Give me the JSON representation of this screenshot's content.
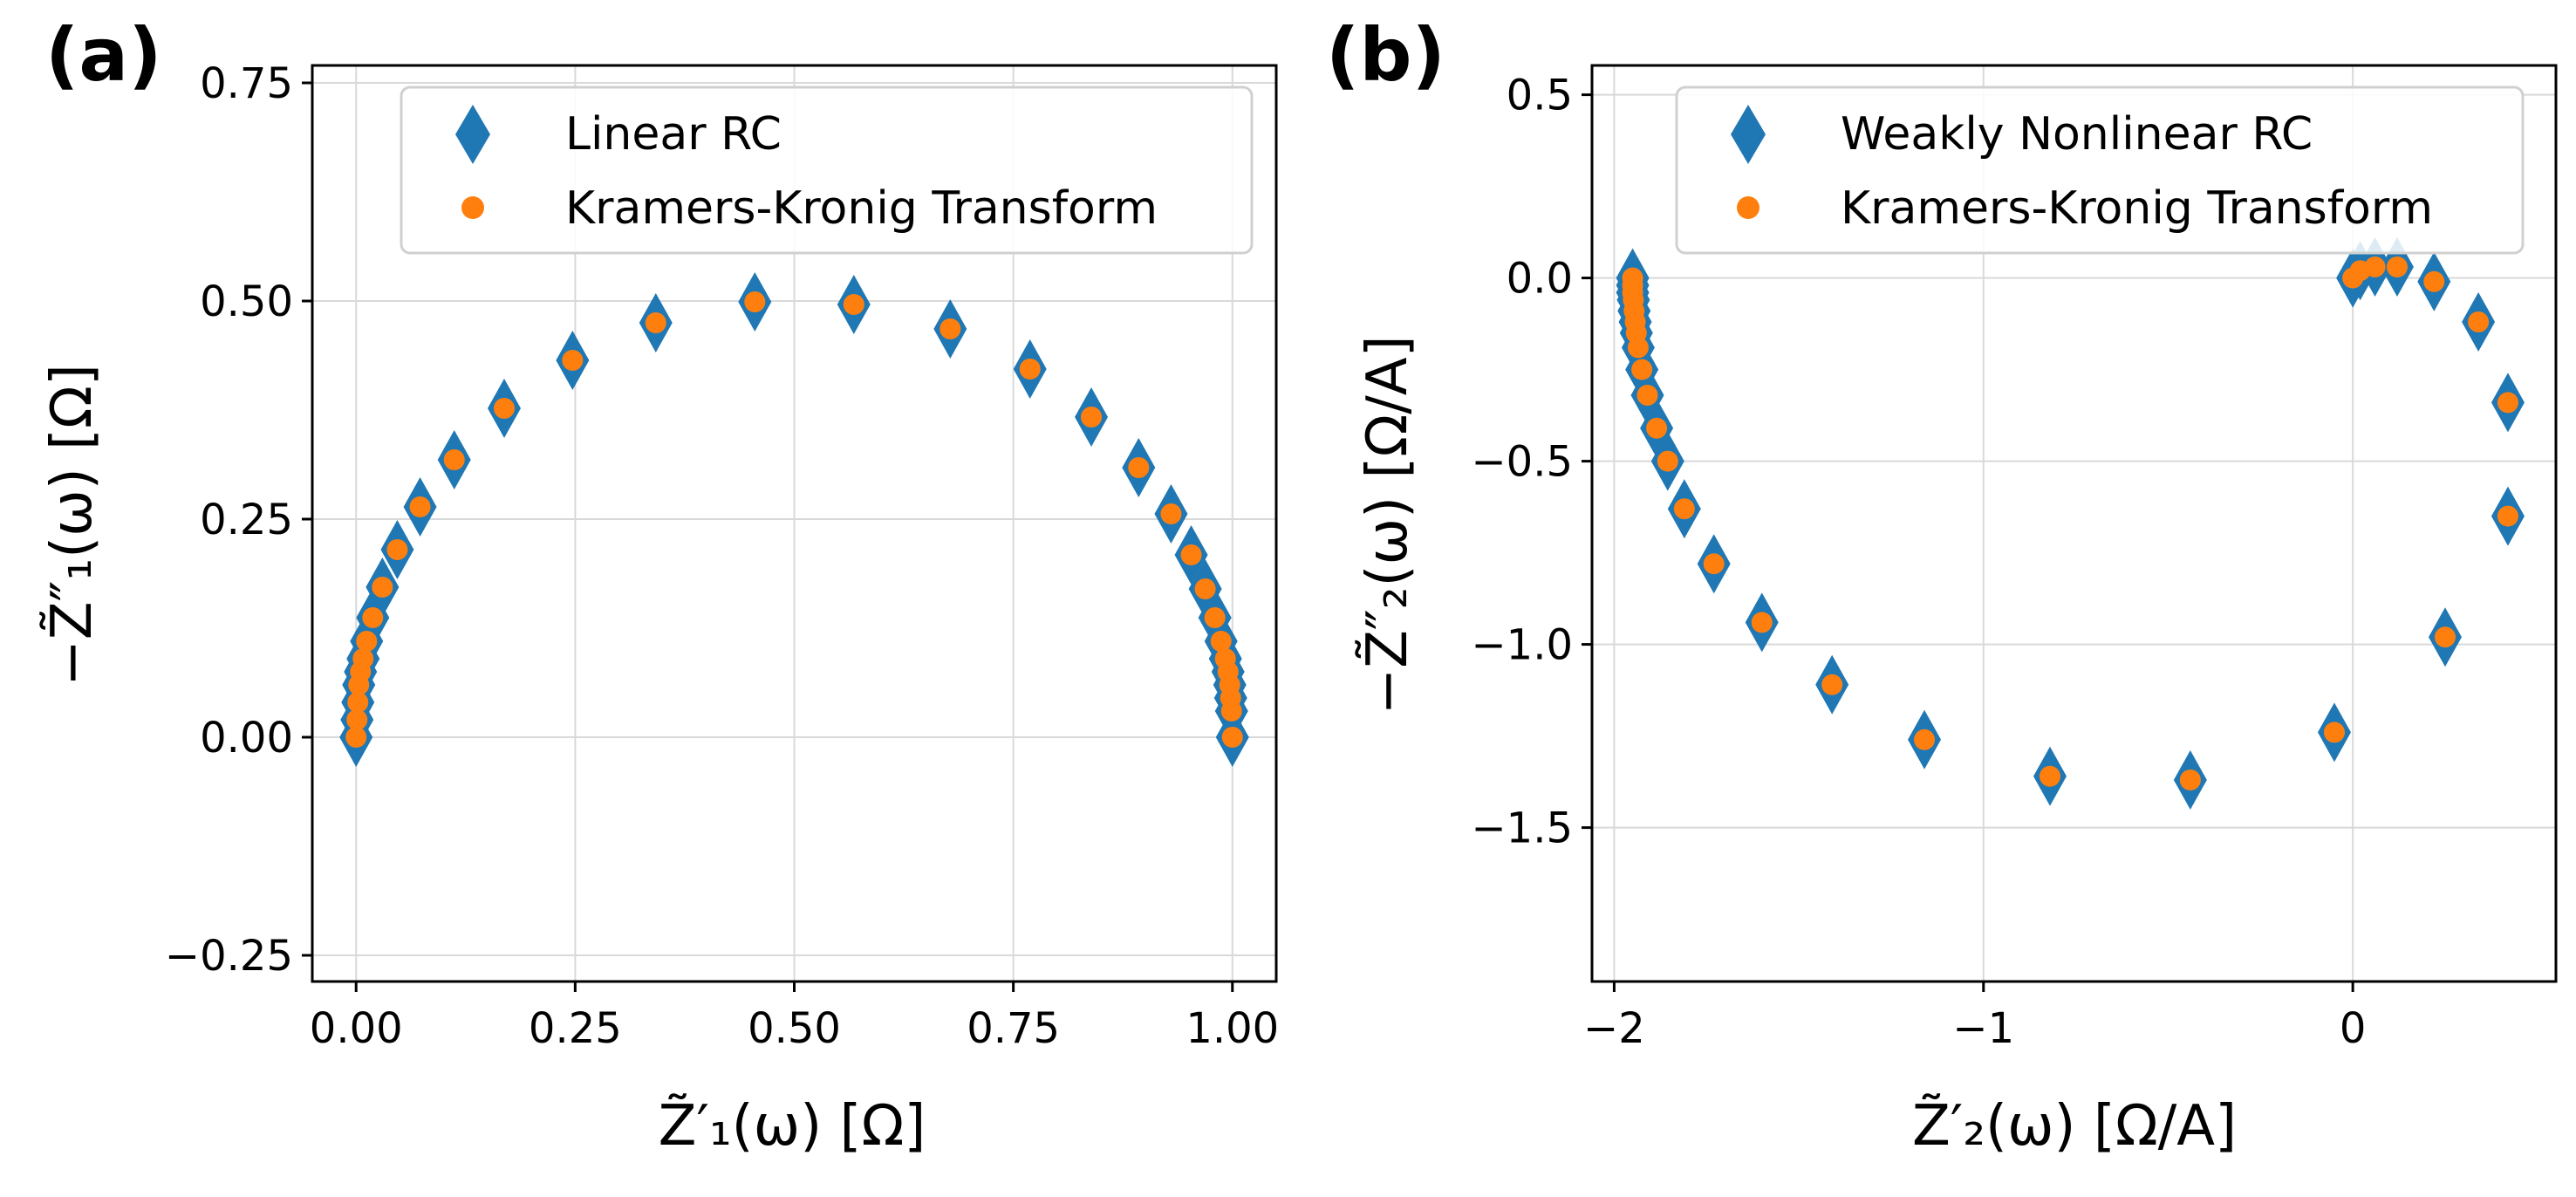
{
  "colors": {
    "diamond": "#1f77b4",
    "dot": "#ff7f0e",
    "grid": "#d9d9d9",
    "axis": "#000000"
  },
  "chart_data": [
    {
      "type": "scatter",
      "panel_label": "(a)",
      "xlabel": "Z̃′₁(ω) [Ω]",
      "ylabel": "−Z̃″₁(ω) [Ω]",
      "xlim": [
        -0.05,
        1.05
      ],
      "ylim": [
        -0.28,
        0.77
      ],
      "xticks": [
        0.0,
        0.25,
        0.5,
        0.75,
        1.0
      ],
      "xtick_labels": [
        "0.00",
        "0.25",
        "0.50",
        "0.75",
        "1.00"
      ],
      "yticks": [
        -0.25,
        0.0,
        0.25,
        0.5,
        0.75
      ],
      "ytick_labels": [
        "−0.25",
        "0.00",
        "0.25",
        "0.50",
        "0.75"
      ],
      "grid": true,
      "legend": "top-right",
      "series": [
        {
          "name": "Linear RC",
          "marker": "diamond",
          "x": [
            0.0,
            0.001,
            0.002,
            0.003,
            0.005,
            0.008,
            0.012,
            0.019,
            0.03,
            0.047,
            0.073,
            0.112,
            0.169,
            0.247,
            0.342,
            0.455,
            0.568,
            0.678,
            0.769,
            0.839,
            0.893,
            0.93,
            0.953,
            0.969,
            0.98,
            0.987,
            0.992,
            0.995,
            0.997,
            0.998,
            0.999,
            1.0
          ],
          "y": [
            0.0,
            0.02,
            0.04,
            0.06,
            0.075,
            0.09,
            0.11,
            0.137,
            0.172,
            0.215,
            0.264,
            0.318,
            0.377,
            0.432,
            0.475,
            0.499,
            0.496,
            0.468,
            0.422,
            0.367,
            0.309,
            0.256,
            0.209,
            0.17,
            0.137,
            0.11,
            0.09,
            0.075,
            0.06,
            0.045,
            0.03,
            0.0
          ]
        },
        {
          "name": "Kramers-Kronig Transform",
          "marker": "dot",
          "x": [
            0.0,
            0.001,
            0.002,
            0.003,
            0.005,
            0.008,
            0.012,
            0.019,
            0.03,
            0.047,
            0.073,
            0.112,
            0.169,
            0.247,
            0.342,
            0.455,
            0.568,
            0.678,
            0.769,
            0.839,
            0.893,
            0.93,
            0.953,
            0.969,
            0.98,
            0.987,
            0.992,
            0.995,
            0.997,
            0.998,
            0.999,
            1.0
          ],
          "y": [
            0.0,
            0.02,
            0.04,
            0.06,
            0.075,
            0.09,
            0.11,
            0.137,
            0.172,
            0.215,
            0.264,
            0.318,
            0.377,
            0.432,
            0.475,
            0.499,
            0.496,
            0.468,
            0.422,
            0.367,
            0.309,
            0.256,
            0.209,
            0.17,
            0.137,
            0.11,
            0.09,
            0.075,
            0.06,
            0.045,
            0.03,
            0.0
          ]
        }
      ]
    },
    {
      "type": "scatter",
      "panel_label": "(b)",
      "xlabel": "Z̃′₂(ω) [Ω/A]",
      "ylabel": "−Z̃″₂(ω) [Ω/A]",
      "xlim": [
        -2.06,
        0.55
      ],
      "ylim": [
        -1.92,
        0.58
      ],
      "xticks": [
        -2,
        -1,
        0
      ],
      "xtick_labels": [
        "−2",
        "−1",
        "0"
      ],
      "yticks": [
        -1.5,
        -1.0,
        -0.5,
        0.0,
        0.5
      ],
      "ytick_labels": [
        "−1.5",
        "−1.0",
        "−0.5",
        "0.0",
        "0.5"
      ],
      "grid": true,
      "legend": "top-right",
      "series": [
        {
          "name": "Weakly Nonlinear RC",
          "marker": "diamond",
          "x": [
            -1.95,
            -1.95,
            -1.95,
            -1.948,
            -1.946,
            -1.943,
            -1.94,
            -1.935,
            -1.925,
            -1.91,
            -1.885,
            -1.855,
            -1.81,
            -1.73,
            -1.6,
            -1.41,
            -1.16,
            -0.82,
            -0.44,
            -0.05,
            0.25,
            0.42,
            0.42,
            0.34,
            0.22,
            0.12,
            0.06,
            0.02,
            0.0
          ],
          "y": [
            0.0,
            -0.02,
            -0.04,
            -0.06,
            -0.09,
            -0.12,
            -0.15,
            -0.19,
            -0.25,
            -0.32,
            -0.41,
            -0.5,
            -0.63,
            -0.78,
            -0.94,
            -1.11,
            -1.26,
            -1.36,
            -1.37,
            -1.24,
            -0.98,
            -0.65,
            -0.34,
            -0.12,
            -0.01,
            0.03,
            0.03,
            0.02,
            0.0
          ]
        },
        {
          "name": "Kramers-Kronig Transform",
          "marker": "dot",
          "x": [
            -1.95,
            -1.95,
            -1.95,
            -1.948,
            -1.946,
            -1.943,
            -1.94,
            -1.935,
            -1.925,
            -1.91,
            -1.885,
            -1.855,
            -1.81,
            -1.73,
            -1.6,
            -1.41,
            -1.16,
            -0.82,
            -0.44,
            -0.05,
            0.25,
            0.42,
            0.42,
            0.34,
            0.22,
            0.12,
            0.06,
            0.02,
            0.0
          ],
          "y": [
            0.0,
            -0.02,
            -0.04,
            -0.06,
            -0.09,
            -0.12,
            -0.15,
            -0.19,
            -0.25,
            -0.32,
            -0.41,
            -0.5,
            -0.63,
            -0.78,
            -0.94,
            -1.11,
            -1.26,
            -1.36,
            -1.37,
            -1.24,
            -0.98,
            -0.65,
            -0.34,
            -0.12,
            -0.01,
            0.03,
            0.03,
            0.02,
            0.0
          ]
        }
      ]
    }
  ]
}
